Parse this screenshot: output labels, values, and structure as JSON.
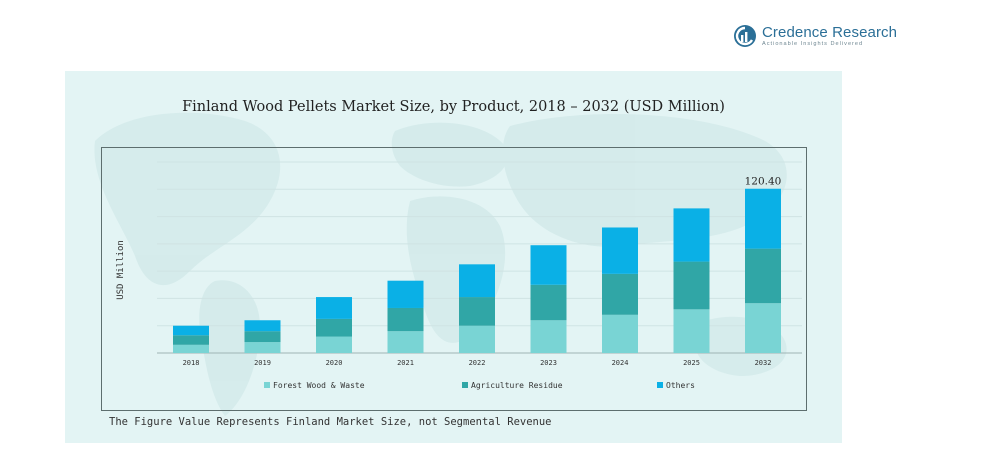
{
  "brand": {
    "name": "Credence Research",
    "tagline": "Actionable Insights Delivered"
  },
  "footnote": "The Figure Value Represents Finland Market Size, not Segmental Revenue",
  "chart_data": {
    "type": "bar",
    "stacked": true,
    "title": "Finland Wood Pellets Market Size, by Product, 2018 – 2032 (USD Million)",
    "xlabel": "",
    "ylabel": "USD Million",
    "categories": [
      "2018",
      "2019",
      "2020",
      "2021",
      "2022",
      "2023",
      "2024",
      "2025",
      "2032"
    ],
    "series": [
      {
        "name": "Forest Wood & Waste",
        "color": "#79d4d4",
        "values": [
          6,
          8,
          12,
          16,
          20,
          24,
          28,
          32,
          36.5
        ]
      },
      {
        "name": "Agriculture Residue",
        "color": "#30a6a6",
        "values": [
          7,
          8,
          13,
          17,
          21,
          26,
          30,
          35,
          40
        ]
      },
      {
        "name": "Others",
        "color": "#0ab0e6",
        "values": [
          7,
          8,
          16,
          20,
          24,
          29,
          34,
          39,
          43.9
        ]
      }
    ],
    "annotations": [
      {
        "category": "2032",
        "text": "120.40"
      }
    ],
    "ylim": [
      0,
      140
    ],
    "grid": true,
    "legend_position": "bottom"
  }
}
